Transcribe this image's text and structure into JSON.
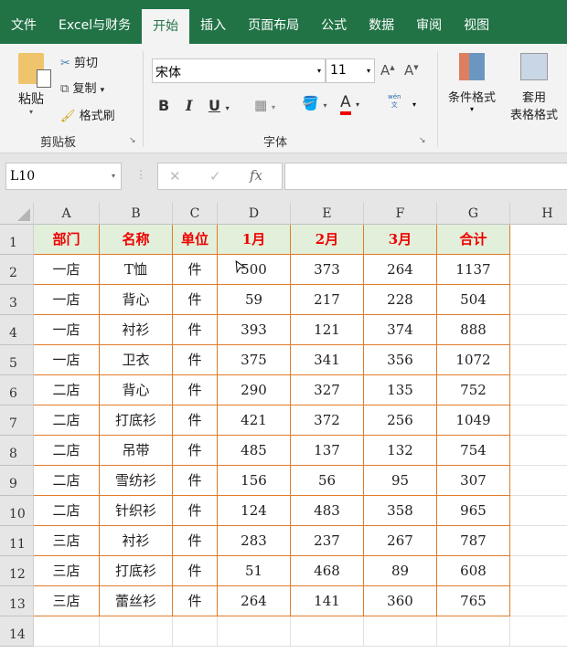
{
  "tabs": [
    "文件",
    "Excel与财务",
    "开始",
    "插入",
    "页面布局",
    "公式",
    "数据",
    "审阅",
    "视图"
  ],
  "active_tab": "开始",
  "ribbon": {
    "paste": "粘贴",
    "cut": "剪切",
    "copy": "复制",
    "format_painter": "格式刷",
    "clipboard_group": "剪贴板",
    "font_name": "宋体",
    "font_size": "11",
    "bold": "B",
    "italic": "I",
    "underline": "U",
    "font_color_letter": "A",
    "phonetic": "wén\n文",
    "font_group": "字体",
    "conditional_format": "条件格式",
    "table_format_1": "套用",
    "table_format_2": "表格格式"
  },
  "formula_bar": {
    "name_box": "L10",
    "cancel": "✕",
    "enter": "✓",
    "fx": "fx",
    "formula": ""
  },
  "columns": [
    "A",
    "B",
    "C",
    "D",
    "E",
    "F",
    "G",
    "H"
  ],
  "rows": [
    "1",
    "2",
    "3",
    "4",
    "5",
    "6",
    "7",
    "8",
    "9",
    "10",
    "11",
    "12",
    "13",
    "14"
  ],
  "header": [
    "部门",
    "名称",
    "单位",
    "1月",
    "2月",
    "3月",
    "合计"
  ],
  "data": [
    [
      "一店",
      "T恤",
      "件",
      "500",
      "373",
      "264",
      "1137"
    ],
    [
      "一店",
      "背心",
      "件",
      "59",
      "217",
      "228",
      "504"
    ],
    [
      "一店",
      "衬衫",
      "件",
      "393",
      "121",
      "374",
      "888"
    ],
    [
      "一店",
      "卫衣",
      "件",
      "375",
      "341",
      "356",
      "1072"
    ],
    [
      "二店",
      "背心",
      "件",
      "290",
      "327",
      "135",
      "752"
    ],
    [
      "二店",
      "打底衫",
      "件",
      "421",
      "372",
      "256",
      "1049"
    ],
    [
      "二店",
      "吊带",
      "件",
      "485",
      "137",
      "132",
      "754"
    ],
    [
      "二店",
      "雪纺衫",
      "件",
      "156",
      "56",
      "95",
      "307"
    ],
    [
      "二店",
      "针织衫",
      "件",
      "124",
      "483",
      "358",
      "965"
    ],
    [
      "三店",
      "衬衫",
      "件",
      "283",
      "237",
      "267",
      "787"
    ],
    [
      "三店",
      "打底衫",
      "件",
      "51",
      "468",
      "89",
      "608"
    ],
    [
      "三店",
      "蕾丝衫",
      "件",
      "264",
      "141",
      "360",
      "765"
    ]
  ],
  "colors": {
    "ribbon_green": "#217346",
    "header_fill": "#e2efda",
    "header_text": "#ee0000",
    "border": "#e07b2a"
  }
}
